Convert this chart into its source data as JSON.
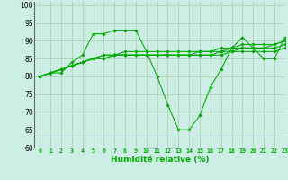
{
  "background_color": "#cceee4",
  "grid_color": "#aaccaa",
  "line_color": "#00aa00",
  "xlabel": "Humidité relative (%)",
  "xlabel_color": "#00aa00",
  "xlim": [
    -0.5,
    23
  ],
  "ylim": [
    60,
    101
  ],
  "yticks": [
    60,
    65,
    70,
    75,
    80,
    85,
    90,
    95,
    100
  ],
  "xticks": [
    0,
    1,
    2,
    3,
    4,
    5,
    6,
    7,
    8,
    9,
    10,
    11,
    12,
    13,
    14,
    15,
    16,
    17,
    18,
    19,
    20,
    21,
    22,
    23
  ],
  "series": [
    {
      "x": [
        0,
        1,
        2,
        3,
        4,
        5,
        6,
        7,
        8,
        9,
        10,
        11,
        12,
        13,
        14,
        15,
        16,
        17,
        18,
        19,
        20,
        21,
        22,
        23
      ],
      "y": [
        80,
        81,
        81,
        84,
        86,
        92,
        92,
        93,
        93,
        93,
        87,
        80,
        72,
        65,
        65,
        69,
        77,
        82,
        88,
        91,
        88,
        85,
        85,
        91
      ]
    },
    {
      "x": [
        0,
        1,
        2,
        3,
        4,
        5,
        6,
        7,
        8,
        9,
        10,
        11,
        12,
        13,
        14,
        15,
        16,
        17,
        18,
        19,
        20,
        21,
        22,
        23
      ],
      "y": [
        80,
        81,
        82,
        83,
        84,
        85,
        85,
        86,
        86,
        86,
        86,
        86,
        86,
        86,
        86,
        86,
        86,
        86,
        87,
        87,
        87,
        87,
        87,
        88
      ]
    },
    {
      "x": [
        0,
        1,
        2,
        3,
        4,
        5,
        6,
        7,
        8,
        9,
        10,
        11,
        12,
        13,
        14,
        15,
        16,
        17,
        18,
        19,
        20,
        21,
        22,
        23
      ],
      "y": [
        80,
        81,
        82,
        83,
        84,
        85,
        85,
        86,
        86,
        86,
        86,
        86,
        86,
        86,
        86,
        86,
        86,
        87,
        87,
        88,
        88,
        88,
        88,
        89
      ]
    },
    {
      "x": [
        0,
        1,
        2,
        3,
        4,
        5,
        6,
        7,
        8,
        9,
        10,
        11,
        12,
        13,
        14,
        15,
        16,
        17,
        18,
        19,
        20,
        21,
        22,
        23
      ],
      "y": [
        80,
        81,
        82,
        83,
        84,
        85,
        86,
        86,
        86,
        86,
        86,
        86,
        86,
        86,
        86,
        87,
        87,
        87,
        88,
        88,
        88,
        88,
        89,
        90
      ]
    },
    {
      "x": [
        0,
        1,
        2,
        3,
        4,
        5,
        6,
        7,
        8,
        9,
        10,
        11,
        12,
        13,
        14,
        15,
        16,
        17,
        18,
        19,
        20,
        21,
        22,
        23
      ],
      "y": [
        80,
        81,
        82,
        83,
        84,
        85,
        86,
        86,
        87,
        87,
        87,
        87,
        87,
        87,
        87,
        87,
        87,
        88,
        88,
        89,
        89,
        89,
        89,
        90
      ]
    }
  ]
}
